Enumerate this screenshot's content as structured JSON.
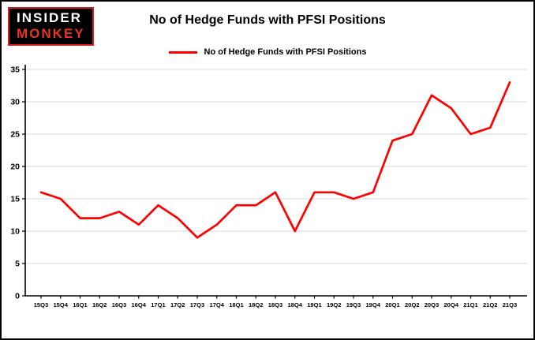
{
  "logo": {
    "line1": "INSIDER",
    "line2": "MONKEY"
  },
  "header": {
    "title": "No of Hedge Funds with PFSI Positions"
  },
  "legend": {
    "label": "No of Hedge Funds with PFSI Positions",
    "color": "#fe0000"
  },
  "chart_data": {
    "type": "line",
    "title": "No of Hedge Funds with PFSI Positions",
    "categories": [
      "15Q3",
      "15Q4",
      "16Q1",
      "16Q2",
      "16Q3",
      "16Q4",
      "17Q1",
      "17Q2",
      "17Q3",
      "17Q4",
      "18Q1",
      "18Q2",
      "18Q3",
      "18Q4",
      "19Q1",
      "19Q2",
      "19Q3",
      "19Q4",
      "20Q1",
      "20Q2",
      "20Q3",
      "20Q4",
      "21Q1",
      "21Q2",
      "21Q3"
    ],
    "values": [
      16,
      15,
      12,
      12,
      13,
      11,
      14,
      12,
      9,
      11,
      14,
      14,
      16,
      10,
      16,
      16,
      15,
      16,
      24,
      25,
      31,
      29,
      25,
      26,
      33
    ],
    "xlabel": "",
    "ylabel": "",
    "ylim": [
      0,
      35
    ],
    "yticks": [
      0,
      5,
      10,
      15,
      20,
      25,
      30,
      35
    ],
    "series_color": "#fe0000",
    "grid_color": "#d9d9d9",
    "axis_color": "#000000",
    "grid": true,
    "legend_position": "top"
  }
}
